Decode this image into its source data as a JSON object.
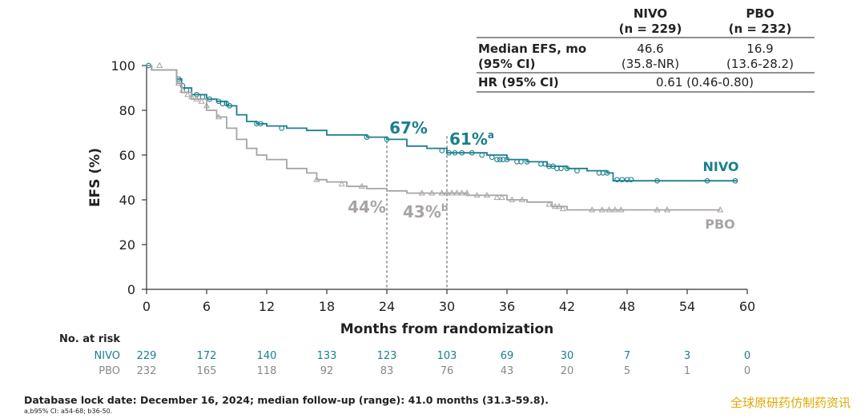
{
  "summary_table": {
    "headers": [
      {
        "name": "NIVO",
        "n": "(n = 229)"
      },
      {
        "name": "PBO",
        "n": "(n = 232)"
      }
    ],
    "median_label_line1": "Median EFS, mo",
    "median_label_line2": "(95% CI)",
    "nivo_median": "46.6",
    "nivo_ci": "(35.8-NR)",
    "pbo_median": "16.9",
    "pbo_ci": "(13.6-28.2)",
    "hr_label": "HR (95% CI)",
    "hr_value": "0.61 (0.46-0.80)"
  },
  "annotations": {
    "nivo_24": "67%",
    "nivo_30": "61%",
    "nivo_30_sup": "a",
    "pbo_24": "44%",
    "pbo_30": "43%",
    "pbo_30_sup": "b"
  },
  "risk_table": {
    "title": "No. at risk",
    "rows": [
      {
        "label": "NIVO",
        "values": [
          "229",
          "172",
          "140",
          "133",
          "123",
          "103",
          "69",
          "30",
          "7",
          "3",
          "0"
        ]
      },
      {
        "label": "PBO",
        "values": [
          "232",
          "165",
          "118",
          "92",
          "83",
          "76",
          "43",
          "20",
          "5",
          "1",
          "0"
        ]
      }
    ]
  },
  "footer": {
    "main": "Database lock date: December 16, 2024; median follow-up (range): 41.0 months (31.3-59.8).",
    "note": "a,b95% CI: a54-68; b36-50."
  },
  "watermark": "全球原研药仿制药资讯",
  "colors": {
    "nivo": "#1b7f8e",
    "pbo": "#a8a3a3",
    "axis": "#333333",
    "dash": "#666666"
  },
  "chart_data": {
    "type": "line",
    "xlabel": "Months from randomization",
    "ylabel": "EFS (%)",
    "xlim": [
      0,
      60
    ],
    "ylim": [
      0,
      100
    ],
    "xticks": [
      0,
      6,
      12,
      18,
      24,
      30,
      36,
      42,
      48,
      54,
      60
    ],
    "yticks": [
      0,
      20,
      40,
      60,
      80,
      100
    ],
    "grid": false,
    "series": [
      {
        "name": "NIVO",
        "marker": "circle",
        "points": [
          [
            0,
            100
          ],
          [
            0.5,
            98
          ],
          [
            2.5,
            98
          ],
          [
            3,
            94
          ],
          [
            3.5,
            90
          ],
          [
            4.5,
            87
          ],
          [
            6,
            85
          ],
          [
            7,
            84
          ],
          [
            8,
            82
          ],
          [
            9,
            78
          ],
          [
            10,
            75
          ],
          [
            11,
            74
          ],
          [
            12,
            73
          ],
          [
            14,
            72
          ],
          [
            16,
            71
          ],
          [
            18,
            69
          ],
          [
            20,
            69
          ],
          [
            22,
            68
          ],
          [
            24,
            67
          ],
          [
            26,
            64
          ],
          [
            28,
            63
          ],
          [
            30,
            61
          ],
          [
            32,
            61
          ],
          [
            34,
            60
          ],
          [
            36,
            58
          ],
          [
            38,
            57
          ],
          [
            40,
            55
          ],
          [
            42,
            54
          ],
          [
            44,
            53
          ],
          [
            46,
            52
          ],
          [
            46.5,
            52
          ],
          [
            46.6,
            48.5
          ],
          [
            59,
            48.5
          ]
        ],
        "censors": [
          [
            0.2,
            100
          ],
          [
            3.2,
            94
          ],
          [
            3.6,
            91
          ],
          [
            4,
            89
          ],
          [
            5,
            87
          ],
          [
            5.6,
            86
          ],
          [
            6.3,
            85
          ],
          [
            7.2,
            84
          ],
          [
            7.6,
            83
          ],
          [
            8,
            83
          ],
          [
            8.3,
            82
          ],
          [
            11,
            74
          ],
          [
            11.4,
            74
          ],
          [
            13.5,
            72
          ],
          [
            22,
            68
          ],
          [
            24,
            67
          ],
          [
            29.5,
            62
          ],
          [
            30.2,
            61
          ],
          [
            30.8,
            61
          ],
          [
            31.5,
            61
          ],
          [
            32.5,
            61
          ],
          [
            33.5,
            60
          ],
          [
            34.5,
            59
          ],
          [
            35,
            58
          ],
          [
            35.3,
            58
          ],
          [
            35.6,
            58
          ],
          [
            36,
            58
          ],
          [
            37,
            57
          ],
          [
            37.4,
            57
          ],
          [
            38,
            57
          ],
          [
            39.4,
            56
          ],
          [
            39.8,
            56
          ],
          [
            40.2,
            55
          ],
          [
            40.6,
            55
          ],
          [
            41,
            54
          ],
          [
            41.4,
            54
          ],
          [
            42,
            54
          ],
          [
            43,
            53
          ],
          [
            45.2,
            52
          ],
          [
            45.6,
            52
          ],
          [
            46,
            52
          ],
          [
            47,
            49
          ],
          [
            47.5,
            49
          ],
          [
            48,
            49
          ],
          [
            48.4,
            49
          ],
          [
            51,
            48.5
          ],
          [
            56,
            48.5
          ],
          [
            58.8,
            48.5
          ]
        ]
      },
      {
        "name": "PBO",
        "marker": "triangle",
        "points": [
          [
            0,
            100
          ],
          [
            0.5,
            98
          ],
          [
            2.5,
            98
          ],
          [
            3,
            92
          ],
          [
            3.5,
            88
          ],
          [
            4.5,
            85
          ],
          [
            6,
            80
          ],
          [
            7,
            77
          ],
          [
            8,
            72
          ],
          [
            9,
            67
          ],
          [
            10,
            63
          ],
          [
            11,
            60
          ],
          [
            12,
            58
          ],
          [
            14,
            54
          ],
          [
            16,
            52
          ],
          [
            17,
            49
          ],
          [
            18,
            48
          ],
          [
            20,
            46
          ],
          [
            22,
            45
          ],
          [
            24,
            44
          ],
          [
            26,
            43
          ],
          [
            28,
            43
          ],
          [
            30,
            43
          ],
          [
            32,
            42
          ],
          [
            34,
            42
          ],
          [
            36,
            40
          ],
          [
            38,
            39
          ],
          [
            40,
            39
          ],
          [
            40.5,
            37
          ],
          [
            42,
            35.5
          ],
          [
            57.3,
            35.5
          ]
        ],
        "censors": [
          [
            1.3,
            100
          ],
          [
            3.2,
            92
          ],
          [
            3.6,
            89
          ],
          [
            4.1,
            87
          ],
          [
            4.5,
            86
          ],
          [
            5,
            85
          ],
          [
            5.5,
            84
          ],
          [
            6,
            82
          ],
          [
            7.2,
            77
          ],
          [
            17,
            49
          ],
          [
            19.5,
            47
          ],
          [
            21.5,
            46
          ],
          [
            27.5,
            43
          ],
          [
            28.5,
            43
          ],
          [
            29.5,
            43
          ],
          [
            30,
            43
          ],
          [
            30.5,
            43
          ],
          [
            31,
            43
          ],
          [
            31.5,
            43
          ],
          [
            32,
            43
          ],
          [
            33,
            42
          ],
          [
            34,
            42
          ],
          [
            35,
            41
          ],
          [
            35.5,
            41
          ],
          [
            36.5,
            40
          ],
          [
            37.5,
            40
          ],
          [
            40.2,
            38
          ],
          [
            40.8,
            37
          ],
          [
            41.2,
            37
          ],
          [
            41.6,
            36
          ],
          [
            44.5,
            35.5
          ],
          [
            45.5,
            35.5
          ],
          [
            46.2,
            35.5
          ],
          [
            46.8,
            35.5
          ],
          [
            47.4,
            35.5
          ],
          [
            51,
            35.5
          ],
          [
            52,
            35.5
          ],
          [
            57.3,
            35.5
          ]
        ]
      }
    ]
  }
}
